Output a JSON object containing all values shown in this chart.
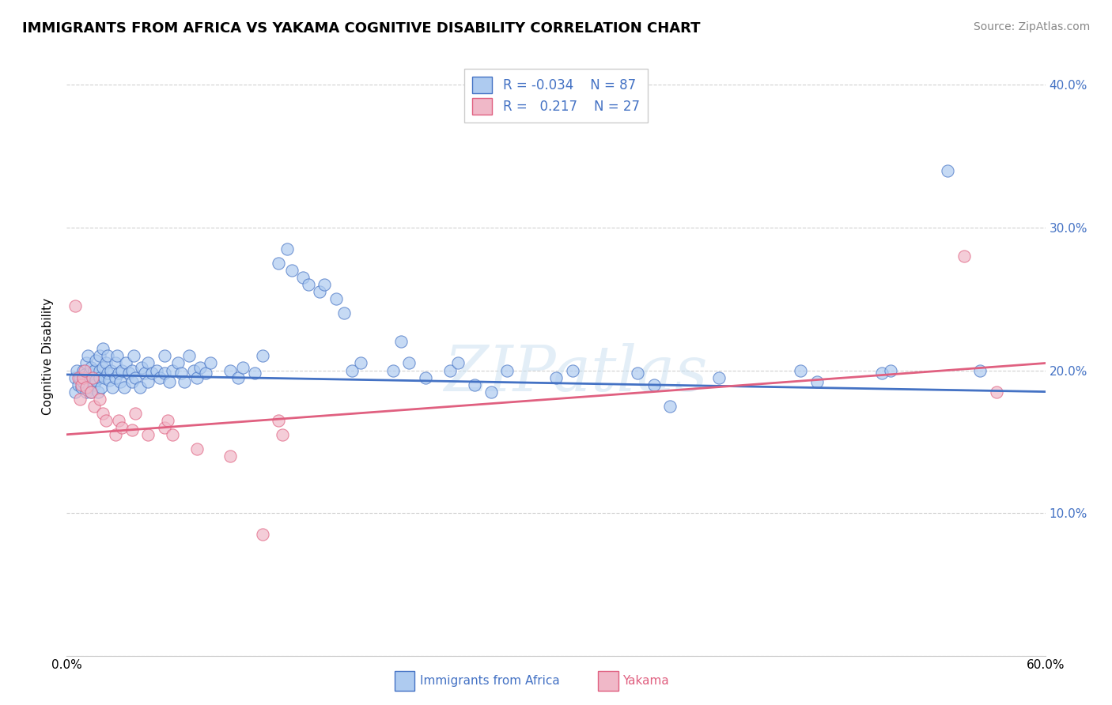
{
  "title": "IMMIGRANTS FROM AFRICA VS YAKAMA COGNITIVE DISABILITY CORRELATION CHART",
  "source": "Source: ZipAtlas.com",
  "ylabel": "Cognitive Disability",
  "xmin": 0.0,
  "xmax": 0.6,
  "ymin": 0.0,
  "ymax": 0.42,
  "xticks": [
    0.0,
    0.1,
    0.2,
    0.3,
    0.4,
    0.5,
    0.6
  ],
  "yticks": [
    0.0,
    0.1,
    0.2,
    0.3,
    0.4
  ],
  "blue_color": "#aecbf0",
  "pink_color": "#f0b8c8",
  "blue_line_color": "#4472c4",
  "pink_line_color": "#e06080",
  "blue_scatter": [
    [
      0.005,
      0.195
    ],
    [
      0.005,
      0.185
    ],
    [
      0.006,
      0.2
    ],
    [
      0.007,
      0.19
    ],
    [
      0.008,
      0.195
    ],
    [
      0.009,
      0.188
    ],
    [
      0.01,
      0.192
    ],
    [
      0.01,
      0.2
    ],
    [
      0.011,
      0.197
    ],
    [
      0.012,
      0.185
    ],
    [
      0.012,
      0.205
    ],
    [
      0.013,
      0.21
    ],
    [
      0.013,
      0.193
    ],
    [
      0.014,
      0.188
    ],
    [
      0.014,
      0.198
    ],
    [
      0.015,
      0.202
    ],
    [
      0.015,
      0.185
    ],
    [
      0.016,
      0.195
    ],
    [
      0.017,
      0.19
    ],
    [
      0.017,
      0.2
    ],
    [
      0.018,
      0.207
    ],
    [
      0.018,
      0.193
    ],
    [
      0.019,
      0.185
    ],
    [
      0.02,
      0.2
    ],
    [
      0.02,
      0.195
    ],
    [
      0.02,
      0.21
    ],
    [
      0.021,
      0.188
    ],
    [
      0.022,
      0.202
    ],
    [
      0.022,
      0.215
    ],
    [
      0.023,
      0.195
    ],
    [
      0.024,
      0.205
    ],
    [
      0.025,
      0.198
    ],
    [
      0.025,
      0.21
    ],
    [
      0.026,
      0.193
    ],
    [
      0.027,
      0.2
    ],
    [
      0.028,
      0.188
    ],
    [
      0.03,
      0.195
    ],
    [
      0.03,
      0.205
    ],
    [
      0.031,
      0.21
    ],
    [
      0.032,
      0.198
    ],
    [
      0.033,
      0.192
    ],
    [
      0.034,
      0.2
    ],
    [
      0.035,
      0.188
    ],
    [
      0.036,
      0.205
    ],
    [
      0.038,
      0.198
    ],
    [
      0.04,
      0.192
    ],
    [
      0.04,
      0.2
    ],
    [
      0.041,
      0.21
    ],
    [
      0.042,
      0.195
    ],
    [
      0.045,
      0.188
    ],
    [
      0.046,
      0.202
    ],
    [
      0.048,
      0.198
    ],
    [
      0.05,
      0.205
    ],
    [
      0.05,
      0.192
    ],
    [
      0.052,
      0.198
    ],
    [
      0.055,
      0.2
    ],
    [
      0.057,
      0.195
    ],
    [
      0.06,
      0.21
    ],
    [
      0.06,
      0.198
    ],
    [
      0.063,
      0.192
    ],
    [
      0.065,
      0.2
    ],
    [
      0.068,
      0.205
    ],
    [
      0.07,
      0.198
    ],
    [
      0.072,
      0.192
    ],
    [
      0.075,
      0.21
    ],
    [
      0.078,
      0.2
    ],
    [
      0.08,
      0.195
    ],
    [
      0.082,
      0.202
    ],
    [
      0.085,
      0.198
    ],
    [
      0.088,
      0.205
    ],
    [
      0.1,
      0.2
    ],
    [
      0.105,
      0.195
    ],
    [
      0.108,
      0.202
    ],
    [
      0.115,
      0.198
    ],
    [
      0.12,
      0.21
    ],
    [
      0.13,
      0.275
    ],
    [
      0.135,
      0.285
    ],
    [
      0.138,
      0.27
    ],
    [
      0.145,
      0.265
    ],
    [
      0.148,
      0.26
    ],
    [
      0.155,
      0.255
    ],
    [
      0.158,
      0.26
    ],
    [
      0.165,
      0.25
    ],
    [
      0.17,
      0.24
    ],
    [
      0.175,
      0.2
    ],
    [
      0.18,
      0.205
    ],
    [
      0.2,
      0.2
    ],
    [
      0.205,
      0.22
    ],
    [
      0.21,
      0.205
    ],
    [
      0.22,
      0.195
    ],
    [
      0.235,
      0.2
    ],
    [
      0.24,
      0.205
    ],
    [
      0.25,
      0.19
    ],
    [
      0.26,
      0.185
    ],
    [
      0.27,
      0.2
    ],
    [
      0.3,
      0.195
    ],
    [
      0.31,
      0.2
    ],
    [
      0.35,
      0.198
    ],
    [
      0.36,
      0.19
    ],
    [
      0.37,
      0.175
    ],
    [
      0.4,
      0.195
    ],
    [
      0.45,
      0.2
    ],
    [
      0.46,
      0.192
    ],
    [
      0.5,
      0.198
    ],
    [
      0.505,
      0.2
    ],
    [
      0.54,
      0.34
    ],
    [
      0.56,
      0.2
    ]
  ],
  "pink_scatter": [
    [
      0.005,
      0.245
    ],
    [
      0.007,
      0.195
    ],
    [
      0.008,
      0.18
    ],
    [
      0.009,
      0.19
    ],
    [
      0.01,
      0.195
    ],
    [
      0.011,
      0.2
    ],
    [
      0.012,
      0.188
    ],
    [
      0.015,
      0.185
    ],
    [
      0.016,
      0.195
    ],
    [
      0.017,
      0.175
    ],
    [
      0.02,
      0.18
    ],
    [
      0.022,
      0.17
    ],
    [
      0.024,
      0.165
    ],
    [
      0.03,
      0.155
    ],
    [
      0.032,
      0.165
    ],
    [
      0.034,
      0.16
    ],
    [
      0.04,
      0.158
    ],
    [
      0.042,
      0.17
    ],
    [
      0.05,
      0.155
    ],
    [
      0.06,
      0.16
    ],
    [
      0.062,
      0.165
    ],
    [
      0.065,
      0.155
    ],
    [
      0.08,
      0.145
    ],
    [
      0.1,
      0.14
    ],
    [
      0.12,
      0.085
    ],
    [
      0.13,
      0.165
    ],
    [
      0.132,
      0.155
    ],
    [
      0.55,
      0.28
    ],
    [
      0.57,
      0.185
    ]
  ],
  "watermark": "ZIPatlas",
  "title_fontsize": 13,
  "axis_fontsize": 11,
  "tick_fontsize": 11,
  "source_fontsize": 10,
  "blue_trend_x0": 0.0,
  "blue_trend_y0": 0.197,
  "blue_trend_x1": 0.6,
  "blue_trend_y1": 0.185,
  "pink_trend_x0": 0.0,
  "pink_trend_y0": 0.155,
  "pink_trend_x1": 0.6,
  "pink_trend_y1": 0.205
}
